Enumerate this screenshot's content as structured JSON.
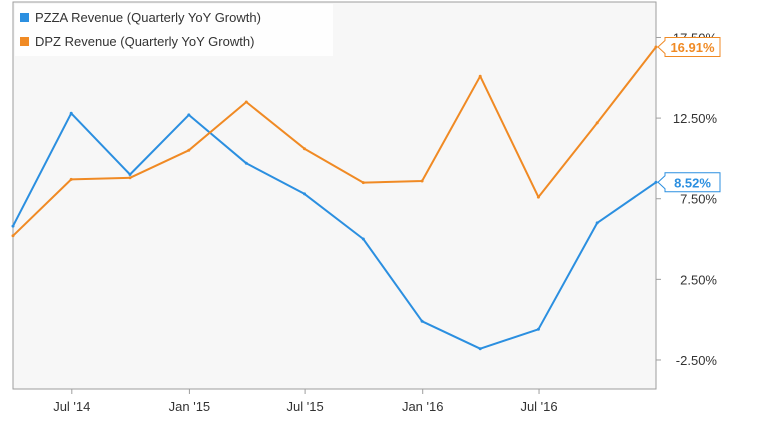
{
  "chart_data": {
    "type": "line",
    "x": [
      "2014-03-31",
      "2014-06-30",
      "2014-09-30",
      "2014-12-31",
      "2015-03-31",
      "2015-06-30",
      "2015-09-30",
      "2015-12-31",
      "2016-03-31",
      "2016-06-30",
      "2016-09-30",
      "2016-12-31"
    ],
    "x_tick_labels": [
      {
        "date": "2014-07-01",
        "label": "Jul '14"
      },
      {
        "date": "2015-01-01",
        "label": "Jan '15"
      },
      {
        "date": "2015-07-01",
        "label": "Jul '15"
      },
      {
        "date": "2016-01-01",
        "label": "Jan '16"
      },
      {
        "date": "2016-07-01",
        "label": "Jul '16"
      }
    ],
    "x_range": [
      "2014-03-31",
      "2016-12-31"
    ],
    "y_ticks": [
      {
        "value": 17.5,
        "label": "17.50%"
      },
      {
        "value": 12.5,
        "label": "12.50%"
      },
      {
        "value": 7.5,
        "label": "7.50%"
      },
      {
        "value": 2.5,
        "label": "2.50%"
      },
      {
        "value": -2.5,
        "label": "-2.50%"
      }
    ],
    "ylim": [
      -4.3,
      19.7
    ],
    "grid": false,
    "legend_position": "top-left",
    "series": [
      {
        "name": "PZZA Revenue (Quarterly YoY Growth)",
        "color": "#2b8fe0",
        "values": [
          5.8,
          12.8,
          9.0,
          12.7,
          9.7,
          7.8,
          5.0,
          -0.1,
          -1.8,
          -0.6,
          6.0,
          8.52
        ],
        "end_label": "8.52%"
      },
      {
        "name": "DPZ Revenue (Quarterly YoY Growth)",
        "color": "#f08a24",
        "values": [
          5.2,
          8.7,
          8.8,
          10.5,
          13.5,
          10.6,
          8.5,
          8.6,
          15.1,
          7.6,
          12.2,
          16.91
        ],
        "end_label": "16.91%"
      }
    ]
  }
}
